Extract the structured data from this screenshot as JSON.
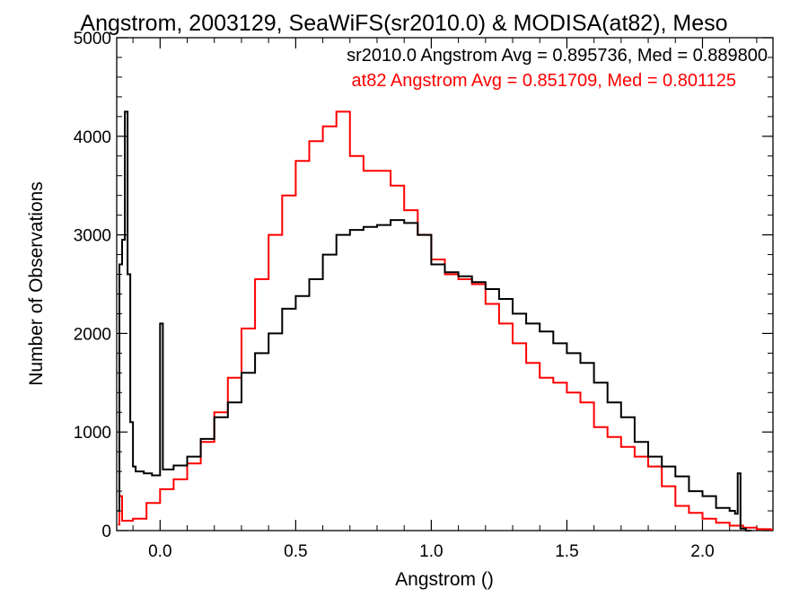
{
  "chart_data": {
    "type": "line",
    "title": "Angstrom, 2003129, SeaWiFS(sr2010.0) & MODISA(at82), Meso",
    "xlabel": "Angstrom ()",
    "ylabel": "Number of Observations",
    "xlim": [
      -0.16,
      2.26
    ],
    "ylim": [
      0,
      5000
    ],
    "xticks": [
      0.0,
      0.5,
      1.0,
      1.5,
      2.0
    ],
    "xtick_labels": [
      "0.0",
      "0.5",
      "1.0",
      "1.5",
      "2.0"
    ],
    "yticks": [
      0,
      1000,
      2000,
      3000,
      4000,
      5000
    ],
    "ytick_labels": [
      "0",
      "1000",
      "2000",
      "3000",
      "4000",
      "5000"
    ],
    "grid": false,
    "step_style": "histogram",
    "annotations": [
      {
        "text": "sr2010.0 Angstrom Avg = 0.895736, Med = 0.889800",
        "color": "#000000"
      },
      {
        "text": "at82 Angstrom Avg = 0.851709, Med = 0.801125",
        "color": "#ff0000"
      }
    ],
    "series": [
      {
        "color": "#000000",
        "x": [
          -0.155,
          -0.15,
          -0.14,
          -0.13,
          -0.12,
          -0.11,
          -0.1,
          -0.09,
          -0.06,
          -0.03,
          0.0,
          0.01,
          0.05,
          0.1,
          0.15,
          0.2,
          0.25,
          0.3,
          0.35,
          0.4,
          0.45,
          0.5,
          0.55,
          0.6,
          0.65,
          0.7,
          0.75,
          0.8,
          0.85,
          0.9,
          0.95,
          1.0,
          1.05,
          1.1,
          1.15,
          1.2,
          1.25,
          1.3,
          1.35,
          1.4,
          1.45,
          1.5,
          1.55,
          1.6,
          1.65,
          1.7,
          1.75,
          1.8,
          1.85,
          1.9,
          1.95,
          2.0,
          2.05,
          2.1,
          2.12,
          2.13,
          2.14,
          2.16
        ],
        "values": [
          200,
          2700,
          2950,
          4250,
          2600,
          1100,
          650,
          600,
          580,
          560,
          2100,
          620,
          660,
          750,
          930,
          1150,
          1300,
          1600,
          1800,
          2000,
          2250,
          2380,
          2550,
          2800,
          3000,
          3050,
          3080,
          3100,
          3150,
          3120,
          3000,
          2700,
          2620,
          2580,
          2520,
          2450,
          2350,
          2200,
          2100,
          2020,
          1900,
          1800,
          1700,
          1500,
          1300,
          1150,
          900,
          750,
          650,
          550,
          400,
          350,
          230,
          200,
          170,
          580,
          20,
          0
        ]
      },
      {
        "color": "#ff0000",
        "x": [
          -0.155,
          -0.15,
          -0.14,
          -0.1,
          -0.05,
          0.0,
          0.05,
          0.1,
          0.15,
          0.2,
          0.25,
          0.3,
          0.35,
          0.4,
          0.45,
          0.5,
          0.55,
          0.6,
          0.65,
          0.7,
          0.75,
          0.8,
          0.85,
          0.9,
          0.95,
          1.0,
          1.05,
          1.1,
          1.15,
          1.2,
          1.25,
          1.3,
          1.35,
          1.4,
          1.45,
          1.5,
          1.55,
          1.6,
          1.65,
          1.7,
          1.75,
          1.8,
          1.85,
          1.9,
          1.95,
          2.0,
          2.05,
          2.1,
          2.15,
          2.2,
          2.25
        ],
        "values": [
          60,
          350,
          100,
          120,
          280,
          420,
          520,
          680,
          900,
          1200,
          1550,
          2050,
          2550,
          3000,
          3400,
          3750,
          3950,
          4100,
          4250,
          3800,
          3650,
          3650,
          3500,
          3250,
          3000,
          2750,
          2600,
          2550,
          2500,
          2300,
          2100,
          1900,
          1700,
          1550,
          1500,
          1400,
          1300,
          1050,
          950,
          850,
          750,
          650,
          450,
          250,
          180,
          120,
          80,
          50,
          30,
          15,
          10
        ]
      }
    ]
  }
}
